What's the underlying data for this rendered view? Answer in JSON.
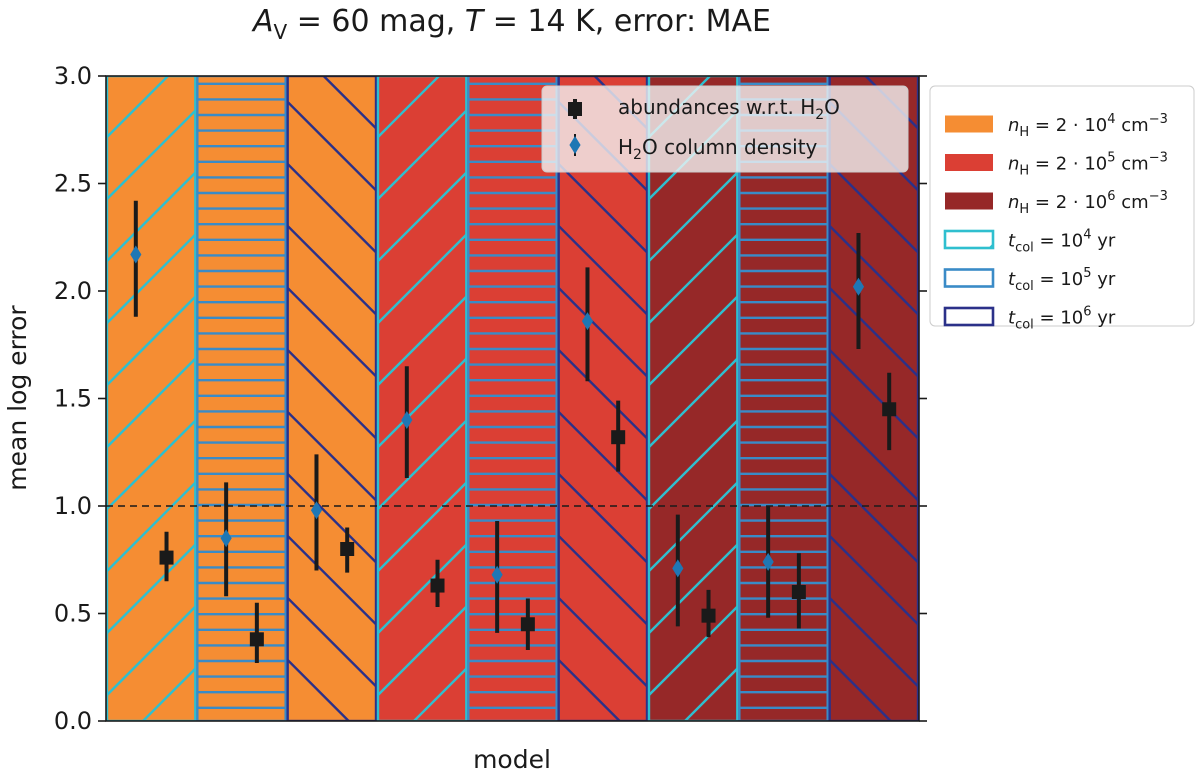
{
  "chart_data": {
    "type": "bar",
    "title": "A_V = 60 mag,  T = 14 K,  error: MAE",
    "title_parts": [
      "A",
      "V",
      " = 60 mag,  ",
      "T",
      " = 14 K,  error: MAE"
    ],
    "xlabel": "model",
    "ylabel": "mean log error",
    "ylim": [
      0,
      3.0
    ],
    "yticks": [
      "0.0",
      "0.5",
      "1.0",
      "1.5",
      "2.0",
      "2.5",
      "3.0"
    ],
    "reference_line": 1.0,
    "grid": false,
    "models": [
      {
        "density_index": 0,
        "time_index": 0
      },
      {
        "density_index": 0,
        "time_index": 1
      },
      {
        "density_index": 0,
        "time_index": 2
      },
      {
        "density_index": 1,
        "time_index": 0
      },
      {
        "density_index": 1,
        "time_index": 1
      },
      {
        "density_index": 1,
        "time_index": 2
      },
      {
        "density_index": 2,
        "time_index": 0
      },
      {
        "density_index": 2,
        "time_index": 1
      },
      {
        "density_index": 2,
        "time_index": 2
      }
    ],
    "series": [
      {
        "name": "abundances w.r.t. H2O",
        "label_parts": [
          "abundances w.r.t. H",
          "2",
          "O"
        ],
        "marker": "square",
        "color": "#1a1a1a",
        "values": [
          0.76,
          0.38,
          0.8,
          0.63,
          0.45,
          1.32,
          0.49,
          0.6,
          1.45
        ],
        "err_low": [
          0.65,
          0.27,
          0.69,
          0.53,
          0.33,
          1.16,
          0.39,
          0.43,
          1.26
        ],
        "err_high": [
          0.88,
          0.55,
          0.9,
          0.75,
          0.57,
          1.49,
          0.61,
          0.78,
          1.62
        ]
      },
      {
        "name": "H2O column density",
        "label_parts": [
          "H",
          "2",
          "O column density"
        ],
        "marker": "diamond",
        "color": "#1f77b4",
        "values": [
          2.17,
          0.85,
          0.98,
          1.4,
          0.68,
          1.86,
          0.71,
          0.74,
          2.02
        ],
        "err_low": [
          1.88,
          0.58,
          0.7,
          1.13,
          0.41,
          1.58,
          0.44,
          0.48,
          1.73
        ],
        "err_high": [
          2.42,
          1.11,
          1.24,
          1.65,
          0.93,
          2.11,
          0.96,
          1.0,
          2.27
        ]
      }
    ],
    "legend_placement": "upper-center inside, plus outside right",
    "density_legend": [
      {
        "color": "#f58d33",
        "parts": [
          "n",
          "H",
          " = 2 · 10",
          "4",
          " cm",
          "−3"
        ]
      },
      {
        "color": "#db3f34",
        "parts": [
          "n",
          "H",
          " = 2 · 10",
          "5",
          " cm",
          "−3"
        ]
      },
      {
        "color": "#962828",
        "parts": [
          "n",
          "H",
          " = 2 · 10",
          "6",
          " cm",
          "−3"
        ]
      }
    ],
    "time_legend": [
      {
        "color": "#2fbfcf",
        "hatch": "diagonal",
        "parts": [
          "t",
          "col",
          " = 10",
          "4",
          " yr"
        ]
      },
      {
        "color": "#3a8bc7",
        "hatch": "horizontal",
        "parts": [
          "t",
          "col",
          " = 10",
          "5",
          " yr"
        ]
      },
      {
        "color": "#2b3189",
        "hatch": "back-diagonal",
        "parts": [
          "t",
          "col",
          " = 10",
          "6",
          " yr"
        ]
      }
    ]
  }
}
